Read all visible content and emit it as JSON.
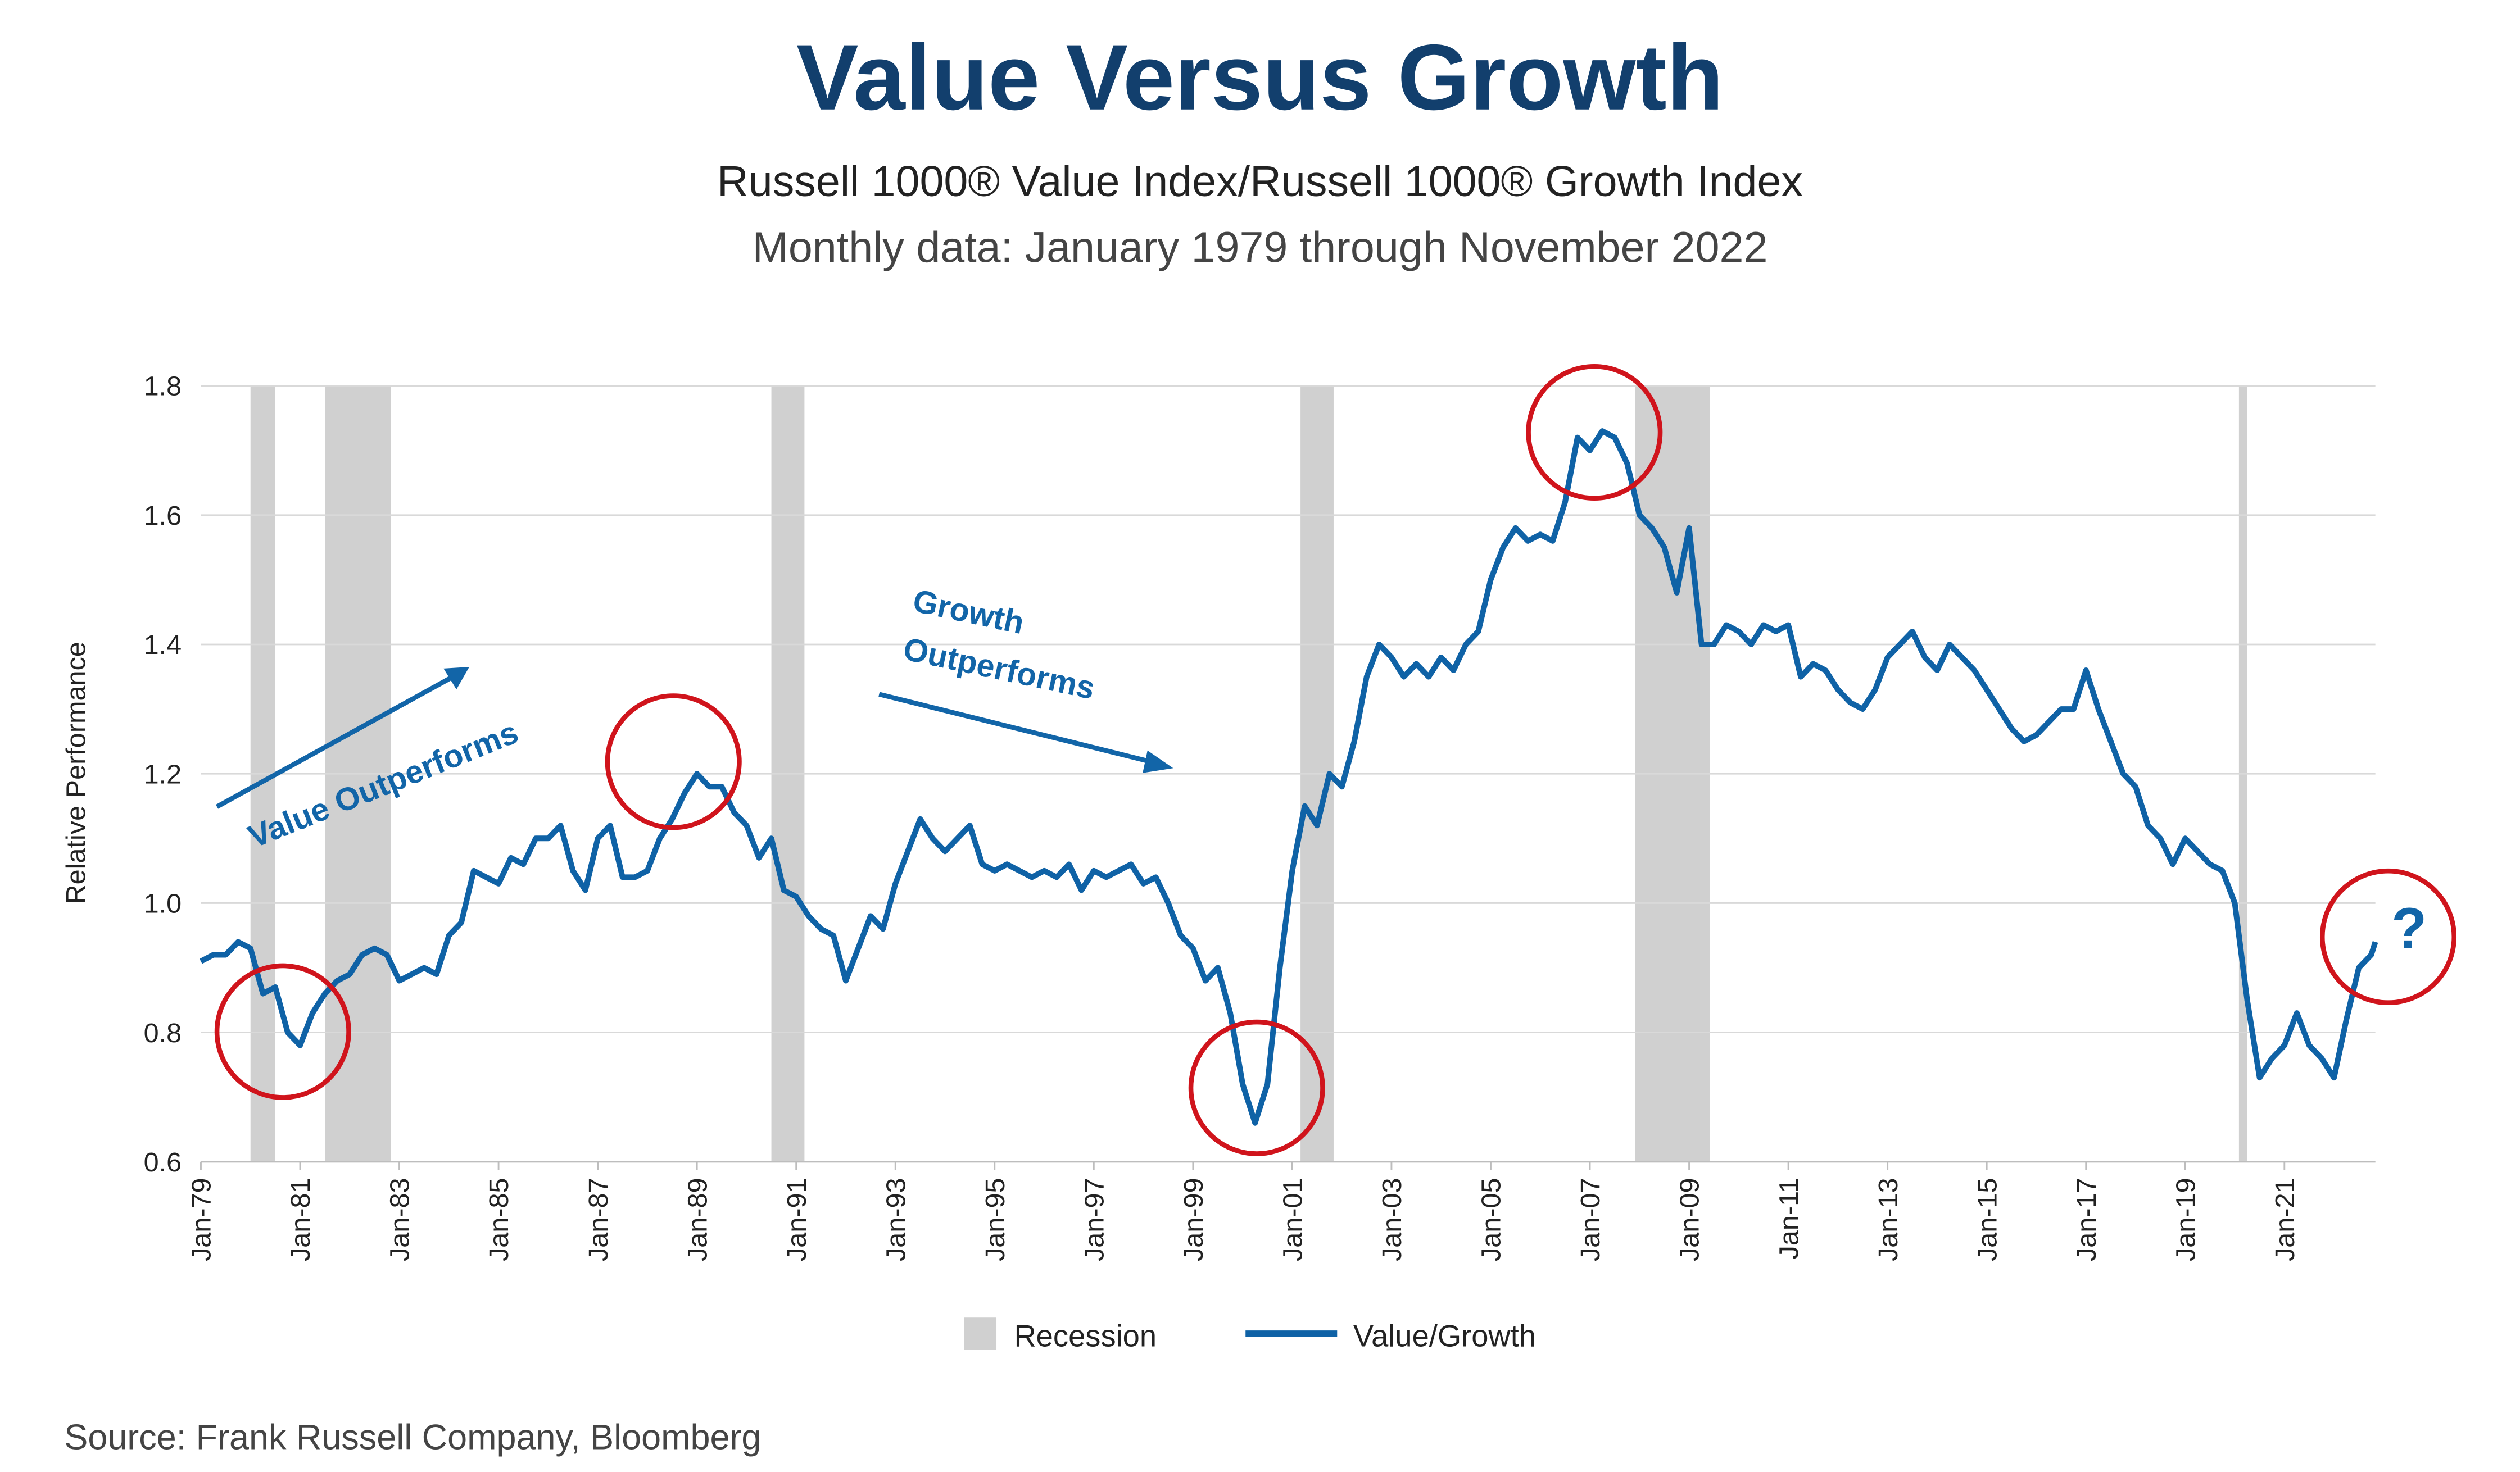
{
  "chart_data": {
    "type": "line",
    "title": "Value Versus Growth",
    "subtitle": "Russell 1000® Value Index/Russell 1000® Growth Index",
    "subtitle2": "Monthly data: January 1979 through November 2022",
    "ylabel": "Relative Performance",
    "source": "Source: Frank Russell Company, Bloomberg",
    "annotations": [
      "Value Outperforms",
      "Growth",
      "Outperforms",
      "?"
    ],
    "x": [
      "Jan-79",
      "Apr-79",
      "Jul-79",
      "Oct-79",
      "Jan-80",
      "Apr-80",
      "Jul-80",
      "Oct-80",
      "Jan-81",
      "Apr-81",
      "Jul-81",
      "Oct-81",
      "Jan-82",
      "Apr-82",
      "Jul-82",
      "Oct-82",
      "Jan-83",
      "Apr-83",
      "Jul-83",
      "Oct-83",
      "Jan-84",
      "Apr-84",
      "Jul-84",
      "Oct-84",
      "Jan-85",
      "Apr-85",
      "Jul-85",
      "Oct-85",
      "Jan-86",
      "Apr-86",
      "Jul-86",
      "Oct-86",
      "Jan-87",
      "Apr-87",
      "Jul-87",
      "Oct-87",
      "Jan-88",
      "Apr-88",
      "Jul-88",
      "Oct-88",
      "Jan-89",
      "Apr-89",
      "Jul-89",
      "Oct-89",
      "Jan-90",
      "Apr-90",
      "Jul-90",
      "Oct-90",
      "Jan-91",
      "Apr-91",
      "Jul-91",
      "Oct-91",
      "Jan-92",
      "Apr-92",
      "Jul-92",
      "Oct-92",
      "Jan-93",
      "Apr-93",
      "Jul-93",
      "Oct-93",
      "Jan-94",
      "Apr-94",
      "Jul-94",
      "Oct-94",
      "Jan-95",
      "Apr-95",
      "Jul-95",
      "Oct-95",
      "Jan-96",
      "Apr-96",
      "Jul-96",
      "Oct-96",
      "Jan-97",
      "Apr-97",
      "Jul-97",
      "Oct-97",
      "Jan-98",
      "Apr-98",
      "Jul-98",
      "Oct-98",
      "Jan-99",
      "Apr-99",
      "Jul-99",
      "Oct-99",
      "Jan-00",
      "Apr-00",
      "Jul-00",
      "Oct-00",
      "Jan-01",
      "Apr-01",
      "Jul-01",
      "Oct-01",
      "Jan-02",
      "Apr-02",
      "Jul-02",
      "Oct-02",
      "Jan-03",
      "Apr-03",
      "Jul-03",
      "Oct-03",
      "Jan-04",
      "Apr-04",
      "Jul-04",
      "Oct-04",
      "Jan-05",
      "Apr-05",
      "Jul-05",
      "Oct-05",
      "Jan-06",
      "Apr-06",
      "Jul-06",
      "Oct-06",
      "Jan-07",
      "Apr-07",
      "Jul-07",
      "Oct-07",
      "Jan-08",
      "Apr-08",
      "Jul-08",
      "Oct-08",
      "Jan-09",
      "Apr-09",
      "Jul-09",
      "Oct-09",
      "Jan-10",
      "Apr-10",
      "Jul-10",
      "Oct-10",
      "Jan-11",
      "Apr-11",
      "Jul-11",
      "Oct-11",
      "Jan-12",
      "Apr-12",
      "Jul-12",
      "Oct-12",
      "Jan-13",
      "Apr-13",
      "Jul-13",
      "Oct-13",
      "Jan-14",
      "Apr-14",
      "Jul-14",
      "Oct-14",
      "Jan-15",
      "Apr-15",
      "Jul-15",
      "Oct-15",
      "Jan-16",
      "Apr-16",
      "Jul-16",
      "Oct-16",
      "Jan-17",
      "Apr-17",
      "Jul-17",
      "Oct-17",
      "Jan-18",
      "Apr-18",
      "Jul-18",
      "Oct-18",
      "Jan-19",
      "Apr-19",
      "Jul-19",
      "Oct-19",
      "Jan-20",
      "Apr-20",
      "Jul-20",
      "Oct-20",
      "Jan-21",
      "Apr-21",
      "Jul-21",
      "Oct-21",
      "Jan-22",
      "Apr-22",
      "Jul-22",
      "Oct-22",
      "Nov-22"
    ],
    "series": [
      {
        "name": "Value/Growth",
        "color": "#0f62a6",
        "values": [
          0.91,
          0.92,
          0.92,
          0.94,
          0.93,
          0.86,
          0.87,
          0.8,
          0.78,
          0.83,
          0.86,
          0.88,
          0.89,
          0.92,
          0.93,
          0.92,
          0.88,
          0.89,
          0.9,
          0.89,
          0.95,
          0.97,
          1.05,
          1.04,
          1.03,
          1.07,
          1.06,
          1.1,
          1.1,
          1.12,
          1.05,
          1.02,
          1.1,
          1.12,
          1.04,
          1.04,
          1.05,
          1.1,
          1.13,
          1.17,
          1.2,
          1.18,
          1.18,
          1.14,
          1.12,
          1.07,
          1.1,
          1.02,
          1.01,
          0.98,
          0.96,
          0.95,
          0.88,
          0.93,
          0.98,
          0.96,
          1.03,
          1.08,
          1.13,
          1.1,
          1.08,
          1.1,
          1.12,
          1.06,
          1.05,
          1.06,
          1.05,
          1.04,
          1.05,
          1.04,
          1.06,
          1.02,
          1.05,
          1.04,
          1.05,
          1.06,
          1.03,
          1.04,
          1.0,
          0.95,
          0.93,
          0.88,
          0.9,
          0.83,
          0.72,
          0.66,
          0.72,
          0.9,
          1.05,
          1.15,
          1.12,
          1.2,
          1.18,
          1.25,
          1.35,
          1.4,
          1.38,
          1.35,
          1.37,
          1.35,
          1.38,
          1.36,
          1.4,
          1.42,
          1.5,
          1.55,
          1.58,
          1.56,
          1.57,
          1.56,
          1.62,
          1.72,
          1.7,
          1.73,
          1.72,
          1.68,
          1.6,
          1.58,
          1.55,
          1.48,
          1.58,
          1.4,
          1.4,
          1.43,
          1.42,
          1.4,
          1.43,
          1.42,
          1.43,
          1.35,
          1.37,
          1.36,
          1.33,
          1.31,
          1.3,
          1.33,
          1.38,
          1.4,
          1.42,
          1.38,
          1.36,
          1.4,
          1.38,
          1.36,
          1.33,
          1.3,
          1.27,
          1.25,
          1.26,
          1.28,
          1.3,
          1.3,
          1.36,
          1.3,
          1.25,
          1.2,
          1.18,
          1.12,
          1.1,
          1.06,
          1.1,
          1.08,
          1.06,
          1.05,
          1.0,
          0.85,
          0.73,
          0.76,
          0.78,
          0.83,
          0.78,
          0.76,
          0.73,
          0.82,
          0.9,
          0.92,
          0.94
        ]
      }
    ],
    "recessions": {
      "name": "Recession",
      "color": "#d0d0d0",
      "periods": [
        {
          "start": "Jan-80",
          "end": "Jul-80"
        },
        {
          "start": "Jul-81",
          "end": "Nov-82"
        },
        {
          "start": "Jul-90",
          "end": "Mar-91"
        },
        {
          "start": "Mar-01",
          "end": "Nov-01"
        },
        {
          "start": "Dec-07",
          "end": "Jun-09"
        },
        {
          "start": "Feb-20",
          "end": "Apr-20"
        }
      ]
    },
    "xlim": [
      "Jan-79",
      "Nov-22"
    ],
    "xticks": [
      "Jan-79",
      "Jan-81",
      "Jan-83",
      "Jan-85",
      "Jan-87",
      "Jan-89",
      "Jan-91",
      "Jan-93",
      "Jan-95",
      "Jan-97",
      "Jan-99",
      "Jan-01",
      "Jan-03",
      "Jan-05",
      "Jan-07",
      "Jan-09",
      "Jan-11",
      "Jan-13",
      "Jan-15",
      "Jan-17",
      "Jan-19",
      "Jan-21"
    ],
    "ylim": [
      0.6,
      1.8
    ],
    "yticks": [
      0.6,
      0.8,
      {
        "value": 1.0,
        "label": "1.0"
      },
      1.2,
      1.4,
      1.6,
      1.8
    ],
    "grid": true
  }
}
